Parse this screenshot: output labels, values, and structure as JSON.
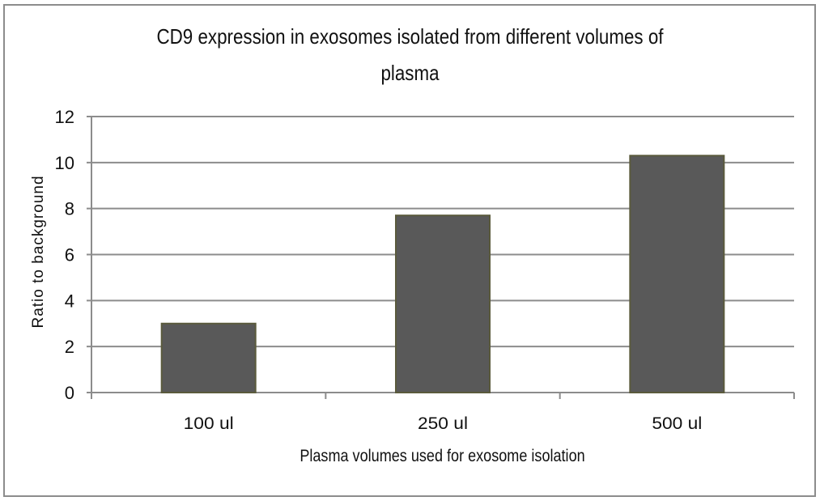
{
  "chart_data": {
    "type": "bar",
    "title": "CD9 expression in exosomes isolated from different volumes of plasma",
    "title_lines": [
      "CD9 expression in exosomes isolated from different volumes of",
      "plasma"
    ],
    "xlabel": "Plasma volumes used for exosome isolation",
    "ylabel": "Ratio to background",
    "categories": [
      "100 ul",
      "250 ul",
      "500 ul"
    ],
    "values": [
      3.0,
      7.7,
      10.3
    ],
    "ylim": [
      0,
      12
    ],
    "yticks": [
      0,
      2,
      4,
      6,
      8,
      10,
      12
    ],
    "grid": true,
    "legend": "none",
    "bar_color": "#595959",
    "bar_edge_color": "#5a5a3c"
  }
}
